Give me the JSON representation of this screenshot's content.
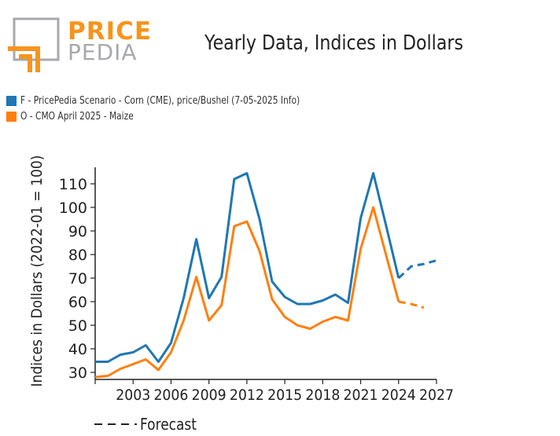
{
  "logo": {
    "line1": "PRICE",
    "line2": "PEDIA"
  },
  "colors": {
    "series_blue": "#1f77b4",
    "series_orange": "#ff7f0e",
    "logo_orange": "#f7941d",
    "logo_gray": "#a7a9ac"
  },
  "chart_data": {
    "type": "line",
    "title": "Yearly Data, Indices in Dollars",
    "ylabel": "Indices in Dollars (2022-01 = 100)",
    "xlabel": "",
    "xlim": [
      2000,
      2027
    ],
    "ylim": [
      27,
      117
    ],
    "xticks": [
      2003,
      2006,
      2009,
      2012,
      2015,
      2018,
      2021,
      2024,
      2027
    ],
    "yticks": [
      30,
      40,
      50,
      60,
      70,
      80,
      90,
      100,
      110
    ],
    "legend_position": "top-left",
    "grid": false,
    "series": [
      {
        "name": "F - PricePedia Scenario - Corn (CME), price/Bushel (7-05-2025 Info)",
        "color": "#1f77b4",
        "x": [
          2000,
          2001,
          2002,
          2003,
          2004,
          2005,
          2006,
          2007,
          2008,
          2009,
          2010,
          2011,
          2012,
          2013,
          2014,
          2015,
          2016,
          2017,
          2018,
          2019,
          2020,
          2021,
          2022,
          2023,
          2024
        ],
        "y": [
          34.5,
          34.5,
          37.5,
          38.5,
          41.5,
          34.5,
          42.5,
          61.5,
          86.5,
          61.5,
          70.5,
          112,
          114.5,
          95,
          68.5,
          62,
          59,
          59,
          60.5,
          63,
          59.5,
          95.5,
          114.5,
          92.5,
          70
        ],
        "forecast_x": [
          2024,
          2025,
          2026,
          2027
        ],
        "forecast_y": [
          70,
          75,
          76,
          77.5
        ]
      },
      {
        "name": "O - CMO April 2025 - Maize",
        "color": "#ff7f0e",
        "x": [
          2000,
          2001,
          2002,
          2003,
          2004,
          2005,
          2006,
          2007,
          2008,
          2009,
          2010,
          2011,
          2012,
          2013,
          2014,
          2015,
          2016,
          2017,
          2018,
          2019,
          2020,
          2021,
          2022,
          2023,
          2024
        ],
        "y": [
          28,
          28.5,
          31.5,
          33.5,
          35.5,
          31,
          38.5,
          52,
          70.5,
          52,
          58.5,
          92,
          94,
          81.5,
          61,
          53.5,
          50,
          48.5,
          51.5,
          53.5,
          52,
          82.5,
          100,
          80,
          60
        ],
        "forecast_x": [
          2024,
          2025,
          2026
        ],
        "forecast_y": [
          60,
          59,
          57.5
        ]
      }
    ],
    "annotations": [
      {
        "text": "Forecast",
        "style": "dashed-line-legend"
      }
    ]
  }
}
